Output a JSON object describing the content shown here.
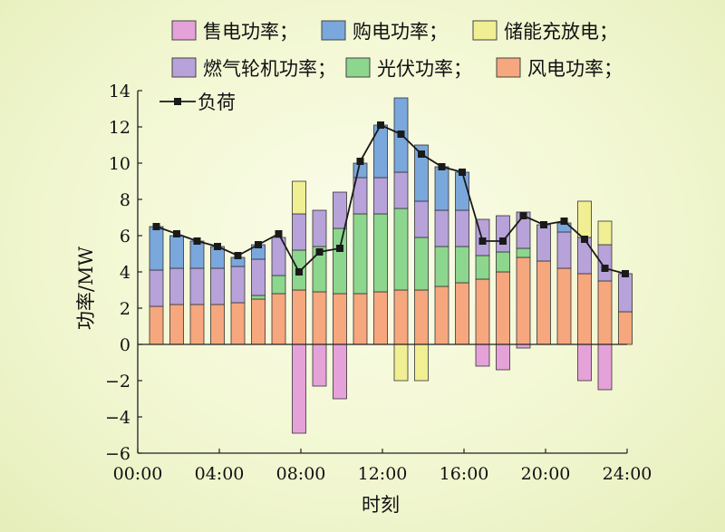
{
  "chart_data": {
    "type": "bar",
    "xlabel": "时刻",
    "ylabel": "功率/MW",
    "ylim": [
      -6,
      14
    ],
    "yticks": [
      "−6",
      "−4",
      "−2",
      "0",
      "2",
      "4",
      "6",
      "8",
      "10",
      "12",
      "14"
    ],
    "xlim": [
      0,
      24
    ],
    "xticks": [
      "00:00",
      "04:00",
      "08:00",
      "12:00",
      "16:00",
      "20:00",
      "24:00"
    ],
    "legend_placement": "top",
    "hours": [
      1,
      2,
      3,
      4,
      5,
      6,
      7,
      8,
      9,
      10,
      11,
      12,
      13,
      14,
      15,
      16,
      17,
      18,
      19,
      20,
      21,
      22,
      23,
      24
    ],
    "series": [
      {
        "name": "售电功率；",
        "key": "sell",
        "color": "#e5a2d9",
        "values": [
          0,
          0,
          0,
          0,
          0,
          0,
          0,
          -4.9,
          -2.3,
          -3.0,
          0,
          0,
          0,
          0,
          0,
          0,
          -1.2,
          -1.4,
          -0.2,
          0,
          0,
          -2.0,
          -2.5,
          0
        ]
      },
      {
        "name": "购电功率；",
        "key": "buy",
        "color": "#7aa7dc",
        "values": [
          2.4,
          1.8,
          1.5,
          1.2,
          0.5,
          0.8,
          0,
          0,
          0,
          0,
          0.8,
          2.9,
          4.1,
          3.1,
          2.4,
          2.1,
          0,
          0,
          0,
          0,
          0.5,
          0,
          0,
          0
        ]
      },
      {
        "name": "储能充放电；",
        "key": "storage",
        "color": "#f1ef93",
        "values": [
          0,
          0,
          0,
          0,
          0,
          0,
          0,
          1.8,
          0,
          0,
          0,
          0,
          -2.0,
          -2.0,
          0,
          0,
          0,
          0,
          0,
          0,
          0,
          2.0,
          1.3,
          0
        ]
      },
      {
        "name": "燃气轮机功率；",
        "key": "gas",
        "color": "#b7a2d9",
        "values": [
          2.0,
          2.0,
          2.0,
          2.0,
          2.0,
          2.0,
          2.1,
          2.0,
          2.0,
          2.0,
          2.0,
          2.0,
          2.0,
          2.0,
          2.0,
          2.0,
          2.0,
          2.0,
          2.0,
          2.0,
          2.0,
          2.0,
          2.0,
          2.1
        ]
      },
      {
        "name": "光伏功率；",
        "key": "pv",
        "color": "#8dd68e",
        "values": [
          0,
          0,
          0,
          0,
          0,
          0.2,
          1.0,
          2.2,
          2.5,
          3.6,
          4.4,
          4.3,
          4.5,
          2.9,
          2.2,
          2.0,
          1.3,
          1.1,
          0.5,
          0,
          0,
          0,
          0,
          0
        ]
      },
      {
        "name": "风电功率；",
        "key": "wind",
        "color": "#f6a77e",
        "values": [
          2.1,
          2.2,
          2.2,
          2.2,
          2.3,
          2.5,
          2.8,
          3.0,
          2.9,
          2.8,
          2.8,
          2.9,
          3.0,
          3.0,
          3.2,
          3.4,
          3.6,
          4.0,
          4.8,
          4.6,
          4.2,
          3.9,
          3.5,
          1.8
        ]
      },
      {
        "name": "负荷",
        "key": "load",
        "type": "line",
        "color": "#1a1a1a",
        "values": [
          6.5,
          6.1,
          5.7,
          5.4,
          4.9,
          5.5,
          6.1,
          4.0,
          5.1,
          5.3,
          10.1,
          12.1,
          11.6,
          10.5,
          9.8,
          9.5,
          5.7,
          5.7,
          7.1,
          6.6,
          6.8,
          5.8,
          4.2,
          3.9
        ]
      }
    ]
  }
}
